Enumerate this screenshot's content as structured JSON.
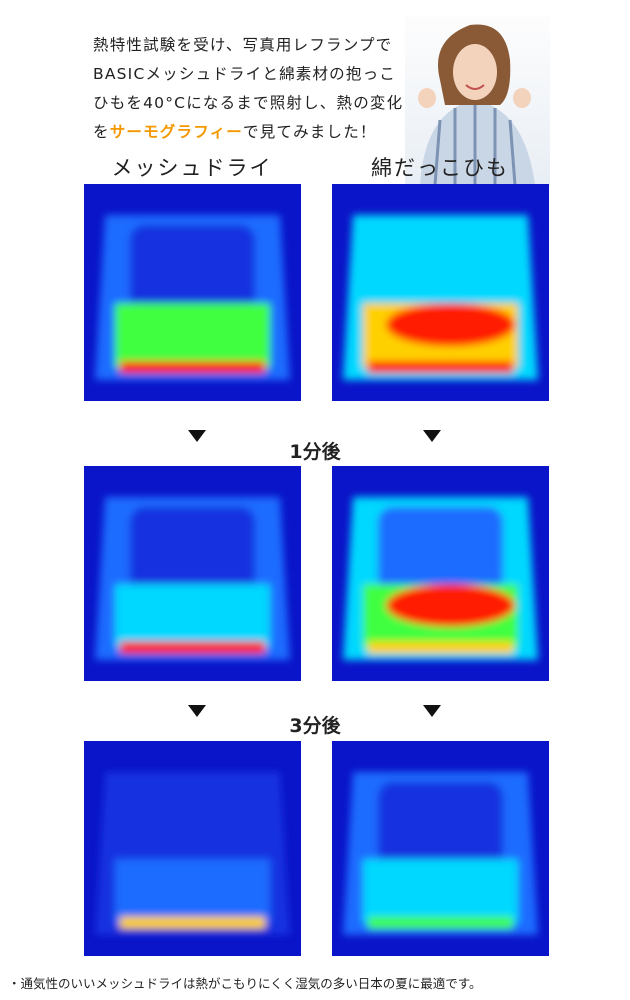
{
  "intro": {
    "lines": [
      "熱特性試験を受け、写真用レフランプで",
      "BASICメッシュドライと綿素材の抱っこ",
      "ひもを40°Cになるまで照射し、熱の変化"
    ],
    "last_line": {
      "before": "を",
      "highlight": "サーモグラフィー",
      "after": "で見てみました！"
    }
  },
  "columns": [
    "メッシュドライ",
    "綿だっこひも"
  ],
  "steps": [
    "1分後",
    "3分後"
  ],
  "footnote": "・通気性のいいメッシュドライは熱がこもりにくく湿気の多い日本の夏に最適です。"
}
